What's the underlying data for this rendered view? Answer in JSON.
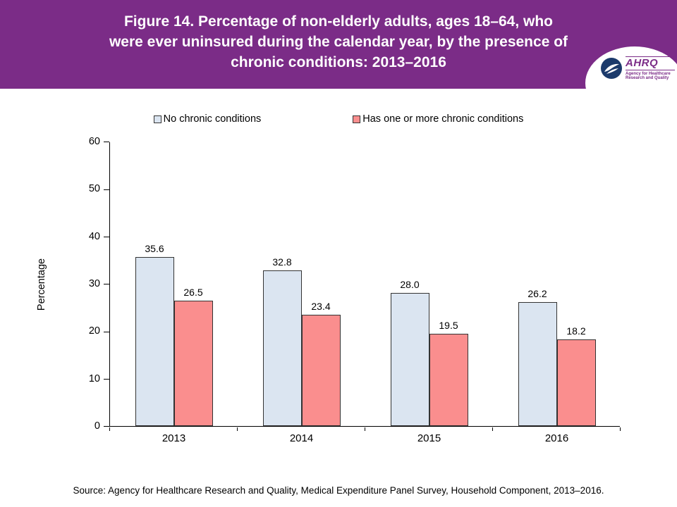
{
  "header": {
    "title": "Figure 14. Percentage of non-elderly adults, ages 18–64, who were ever uninsured during the calendar year, by the presence of chronic conditions: 2013–2016",
    "banner_color": "#7B2C87",
    "logo": {
      "wordmark": "AHRQ",
      "tagline": "Agency for Healthcare Research and Quality"
    }
  },
  "chart_data": {
    "type": "bar",
    "categories": [
      "2013",
      "2014",
      "2015",
      "2016"
    ],
    "series": [
      {
        "name": "No chronic conditions",
        "values": [
          35.6,
          32.8,
          28.0,
          26.2
        ],
        "fill": "#DBE5F1",
        "border": "#333333"
      },
      {
        "name": "Has one or more chronic conditions",
        "values": [
          26.5,
          23.4,
          19.5,
          18.2
        ],
        "fill": "#FA8E8E",
        "border": "#333333"
      }
    ],
    "title": "",
    "xlabel": "",
    "ylabel": "Percentage",
    "ylim": [
      0,
      60
    ],
    "yticks": [
      0,
      10,
      20,
      30,
      40,
      50,
      60
    ],
    "grid": false,
    "legend_position": "top",
    "value_labels": true,
    "value_label_decimals": 1
  },
  "source": "Source: Agency for Healthcare Research and Quality, Medical Expenditure Panel Survey, Household Component, 2013–2016."
}
